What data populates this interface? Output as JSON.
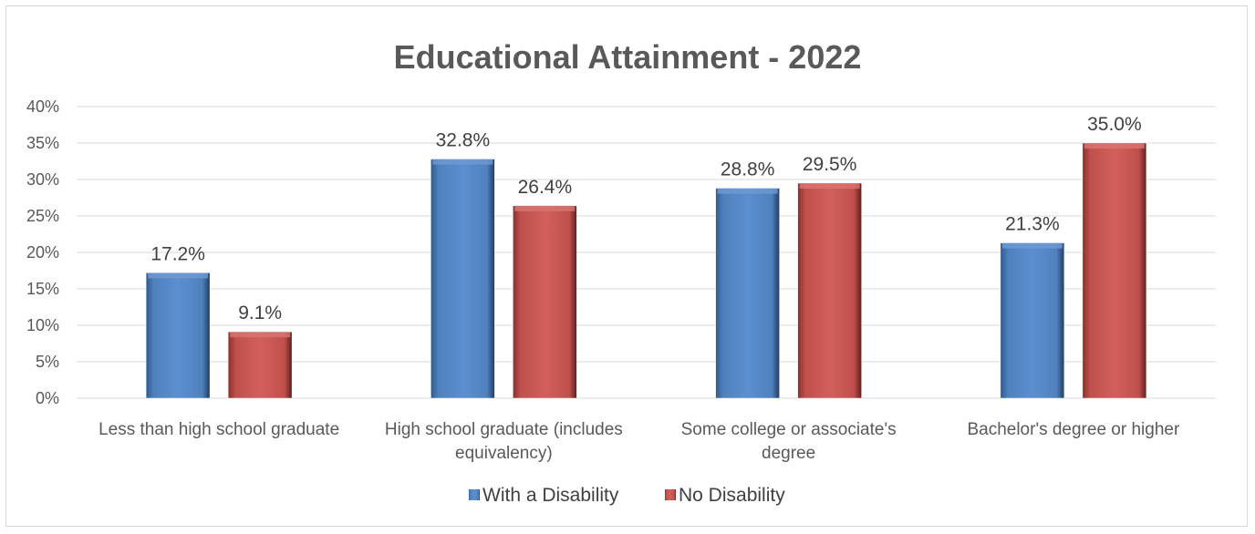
{
  "chart_data": {
    "type": "bar",
    "title": "Educational Attainment - 2022",
    "categories": [
      [
        "Less than high school graduate"
      ],
      [
        "High school graduate (includes",
        "equivalency)"
      ],
      [
        "Some college or associate's",
        "degree"
      ],
      [
        "Bachelor's degree or higher"
      ]
    ],
    "series": [
      {
        "name": "With a Disability",
        "color": "#4f81bd",
        "values": [
          17.2,
          32.8,
          28.8,
          21.3
        ],
        "labels": [
          "17.2%",
          "32.8%",
          "28.8%",
          "21.3%"
        ]
      },
      {
        "name": "No Disability",
        "color": "#c0504d",
        "values": [
          9.1,
          26.4,
          29.5,
          35.0
        ],
        "labels": [
          "9.1%",
          "26.4%",
          "29.5%",
          "35.0%"
        ]
      }
    ],
    "ylim": [
      0,
      40
    ],
    "yticks": [
      0,
      5,
      10,
      15,
      20,
      25,
      30,
      35,
      40
    ],
    "ytick_labels": [
      "0%",
      "5%",
      "10%",
      "15%",
      "20%",
      "25%",
      "30%",
      "35%",
      "40%"
    ],
    "grid": true,
    "legend_position": "bottom"
  }
}
